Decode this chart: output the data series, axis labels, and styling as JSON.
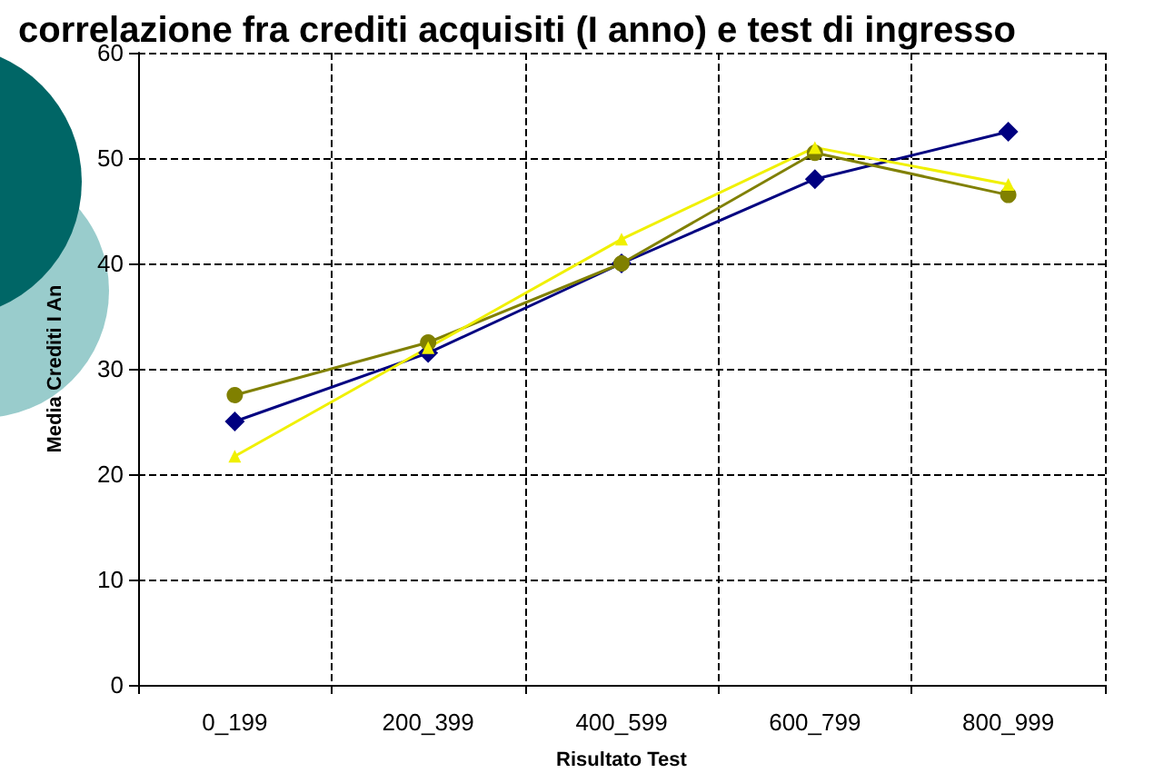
{
  "chart_data": {
    "type": "line",
    "title": "correlazione fra crediti acquisiti (I anno) e test di ingresso",
    "xlabel": "Risultato Test",
    "ylabel": "Media Crediti I An",
    "categories": [
      "0_199",
      "200_399",
      "400_599",
      "600_799",
      "800_999"
    ],
    "series": [
      {
        "color": "#000080",
        "marker": "diamond",
        "values": [
          25,
          31.5,
          40,
          48,
          52.5
        ]
      },
      {
        "color": "#808000",
        "marker": "circle",
        "values": [
          27.5,
          32.5,
          40,
          50.5,
          46.5
        ]
      },
      {
        "color": "#f0f000",
        "marker": "triangle",
        "values": [
          21.7,
          32,
          42.3,
          51,
          47.5
        ]
      }
    ],
    "ylim": [
      0,
      60
    ],
    "yticks": [
      0,
      10,
      20,
      30,
      40,
      50,
      60
    ],
    "grid": true
  }
}
